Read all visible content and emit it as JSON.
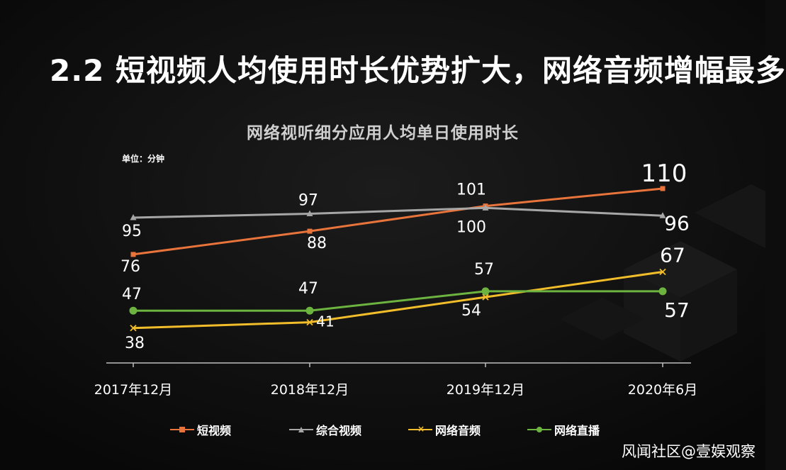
{
  "slide_title": "2.2 短视频人均使用时长优势扩大，网络音频增幅最多",
  "watermark": "风闻社区@壹娱观察",
  "chart_data": {
    "type": "line",
    "title": "网络视听细分应用人均单日使用时长",
    "unit": "单位：分钟",
    "categories": [
      "2017年12月",
      "2018年12月",
      "2019年12月",
      "2020年6月"
    ],
    "ylim": [
      20,
      125
    ],
    "grid": false,
    "legend_position": "bottom",
    "series": [
      {
        "name": "短视频",
        "values": [
          76,
          88,
          101,
          110
        ],
        "color": "#e8743b",
        "marker": "square"
      },
      {
        "name": "综合视频",
        "values": [
          95,
          97,
          100,
          96
        ],
        "color": "#a6a6a6",
        "marker": "triangle"
      },
      {
        "name": "网络音频",
        "values": [
          38,
          41,
          54,
          67
        ],
        "color": "#f2bd2a",
        "marker": "x"
      },
      {
        "name": "网络直播",
        "values": [
          47,
          47,
          57,
          57
        ],
        "color": "#6cb33f",
        "marker": "circle"
      }
    ]
  }
}
